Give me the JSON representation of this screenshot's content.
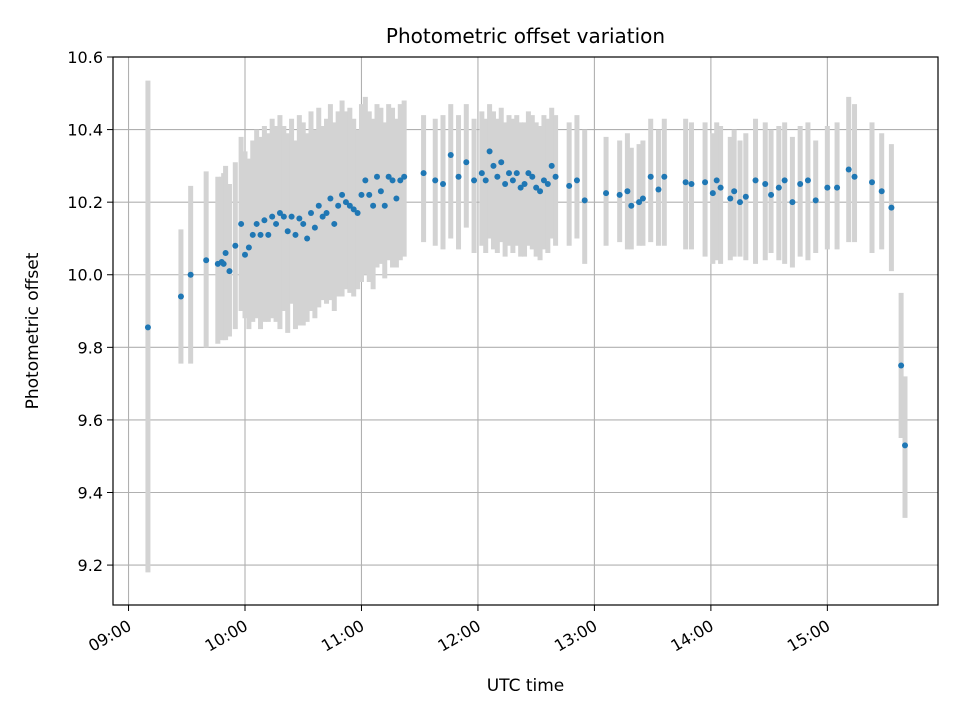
{
  "chart_data": {
    "type": "scatter",
    "title": "Photometric offset variation",
    "xlabel": "UTC time",
    "ylabel": "Photometric offset",
    "xlim": [
      "08:52",
      "15:57"
    ],
    "ylim": [
      9.09,
      10.6
    ],
    "x_ticks": [
      "09:00",
      "10:00",
      "11:00",
      "12:00",
      "13:00",
      "14:00",
      "15:00"
    ],
    "y_ticks": [
      9.2,
      9.4,
      9.6,
      9.8,
      10.0,
      10.2,
      10.4,
      10.6
    ],
    "y_tick_labels": [
      "9.2",
      "9.4",
      "9.6",
      "9.8",
      "10.0",
      "10.2",
      "10.4",
      "10.6"
    ],
    "grid": true,
    "colors": {
      "points": "#1f77b4",
      "errorbars": "#d3d3d3",
      "grid": "#b0b0b0"
    },
    "series": [
      {
        "x": [
          "09:10",
          "09:27",
          "09:32",
          "09:40",
          "09:46",
          "09:48",
          "09:49",
          "09:50",
          "09:52",
          "09:55",
          "09:58",
          "10:00",
          "10:02",
          "10:04",
          "10:06",
          "10:08",
          "10:10",
          "10:12",
          "10:14",
          "10:16",
          "10:18",
          "10:20",
          "10:22",
          "10:24",
          "10:26",
          "10:28",
          "10:30",
          "10:32",
          "10:34",
          "10:36",
          "10:38",
          "10:40",
          "10:42",
          "10:44",
          "10:46",
          "10:48",
          "10:50",
          "10:52",
          "10:54",
          "10:56",
          "10:58",
          "11:00",
          "11:02",
          "11:04",
          "11:06",
          "11:08",
          "11:10",
          "11:12",
          "11:14",
          "11:16",
          "11:18",
          "11:20",
          "11:22",
          "11:32",
          "11:38",
          "11:42",
          "11:46",
          "11:50",
          "11:54",
          "11:58",
          "12:02",
          "12:04",
          "12:06",
          "12:08",
          "12:10",
          "12:12",
          "12:14",
          "12:16",
          "12:18",
          "12:20",
          "12:22",
          "12:24",
          "12:26",
          "12:28",
          "12:30",
          "12:32",
          "12:34",
          "12:36",
          "12:38",
          "12:40",
          "12:47",
          "12:51",
          "12:55",
          "13:06",
          "13:13",
          "13:17",
          "13:19",
          "13:23",
          "13:25",
          "13:29",
          "13:33",
          "13:36",
          "13:47",
          "13:50",
          "13:57",
          "14:01",
          "14:03",
          "14:05",
          "14:10",
          "14:12",
          "14:15",
          "14:18",
          "14:23",
          "14:28",
          "14:31",
          "14:35",
          "14:38",
          "14:42",
          "14:46",
          "14:50",
          "14:54",
          "15:00",
          "15:05",
          "15:11",
          "15:14",
          "15:23",
          "15:28",
          "15:33",
          "15:38",
          "15:40"
        ],
        "y": [
          9.855,
          9.94,
          10.0,
          10.04,
          10.03,
          10.035,
          10.03,
          10.06,
          10.01,
          10.08,
          10.14,
          10.055,
          10.075,
          10.11,
          10.14,
          10.11,
          10.15,
          10.11,
          10.16,
          10.14,
          10.17,
          10.16,
          10.12,
          10.16,
          10.11,
          10.155,
          10.14,
          10.1,
          10.17,
          10.13,
          10.19,
          10.16,
          10.17,
          10.21,
          10.14,
          10.19,
          10.22,
          10.2,
          10.19,
          10.18,
          10.17,
          10.22,
          10.26,
          10.22,
          10.19,
          10.27,
          10.23,
          10.19,
          10.27,
          10.26,
          10.21,
          10.26,
          10.27,
          10.28,
          10.26,
          10.25,
          10.33,
          10.27,
          10.31,
          10.26,
          10.28,
          10.26,
          10.34,
          10.3,
          10.27,
          10.31,
          10.25,
          10.28,
          10.26,
          10.28,
          10.24,
          10.25,
          10.28,
          10.27,
          10.24,
          10.23,
          10.26,
          10.25,
          10.3,
          10.27,
          10.245,
          10.26,
          10.205,
          10.225,
          10.22,
          10.23,
          10.19,
          10.2,
          10.21,
          10.27,
          10.235,
          10.27,
          10.255,
          10.25,
          10.255,
          10.225,
          10.26,
          10.24,
          10.21,
          10.23,
          10.2,
          10.215,
          10.26,
          10.25,
          10.22,
          10.24,
          10.26,
          10.2,
          10.25,
          10.26,
          10.205,
          10.24,
          10.24,
          10.29,
          10.27,
          10.255,
          10.23,
          10.185,
          9.75,
          9.53
        ],
        "error_low": [
          9.18,
          9.755,
          9.755,
          9.8,
          9.81,
          9.82,
          9.82,
          9.82,
          9.83,
          9.85,
          9.9,
          9.88,
          9.85,
          9.87,
          9.88,
          9.85,
          9.87,
          9.87,
          9.88,
          9.87,
          9.85,
          9.9,
          9.84,
          9.92,
          9.85,
          9.86,
          9.86,
          9.87,
          9.9,
          9.88,
          9.91,
          9.93,
          9.92,
          9.93,
          9.9,
          9.94,
          9.94,
          9.96,
          9.95,
          9.94,
          9.96,
          9.98,
          10.0,
          9.98,
          9.96,
          10.02,
          10.03,
          9.99,
          10.04,
          10.02,
          10.02,
          10.04,
          10.05,
          10.09,
          10.08,
          10.07,
          10.1,
          10.07,
          10.13,
          10.06,
          10.08,
          10.06,
          10.1,
          10.07,
          10.06,
          10.09,
          10.05,
          10.08,
          10.06,
          10.08,
          10.05,
          10.05,
          10.08,
          10.07,
          10.05,
          10.04,
          10.07,
          10.06,
          10.1,
          10.08,
          10.08,
          10.1,
          10.03,
          10.08,
          10.09,
          10.07,
          10.07,
          10.08,
          10.08,
          10.09,
          10.08,
          10.08,
          10.07,
          10.07,
          10.05,
          10.03,
          10.04,
          10.03,
          10.04,
          10.05,
          10.05,
          10.04,
          10.03,
          10.04,
          10.06,
          10.04,
          10.03,
          10.02,
          10.05,
          10.04,
          10.06,
          10.07,
          10.07,
          10.09,
          10.09,
          10.06,
          10.07,
          10.01,
          9.55,
          9.33
        ],
        "error_high": [
          10.535,
          10.125,
          10.245,
          10.285,
          10.27,
          10.27,
          10.28,
          10.3,
          10.25,
          10.31,
          10.38,
          10.34,
          10.32,
          10.37,
          10.4,
          10.38,
          10.41,
          10.39,
          10.43,
          10.41,
          10.44,
          10.41,
          10.39,
          10.43,
          10.37,
          10.44,
          10.42,
          10.39,
          10.45,
          10.4,
          10.46,
          10.41,
          10.43,
          10.47,
          10.42,
          10.45,
          10.48,
          10.45,
          10.46,
          10.43,
          10.4,
          10.47,
          10.49,
          10.45,
          10.43,
          10.47,
          10.46,
          10.42,
          10.47,
          10.46,
          10.43,
          10.47,
          10.48,
          10.44,
          10.43,
          10.44,
          10.47,
          10.44,
          10.47,
          10.43,
          10.45,
          10.43,
          10.47,
          10.45,
          10.43,
          10.46,
          10.42,
          10.44,
          10.43,
          10.44,
          10.42,
          10.42,
          10.45,
          10.44,
          10.42,
          10.41,
          10.44,
          10.43,
          10.46,
          10.44,
          10.42,
          10.44,
          10.4,
          10.38,
          10.37,
          10.39,
          10.35,
          10.36,
          10.37,
          10.43,
          10.4,
          10.43,
          10.43,
          10.42,
          10.42,
          10.39,
          10.42,
          10.41,
          10.38,
          10.4,
          10.37,
          10.39,
          10.43,
          10.42,
          10.4,
          10.41,
          10.42,
          10.38,
          10.41,
          10.42,
          10.37,
          10.41,
          10.42,
          10.49,
          10.47,
          10.42,
          10.39,
          10.36,
          9.95,
          9.72
        ]
      }
    ]
  }
}
